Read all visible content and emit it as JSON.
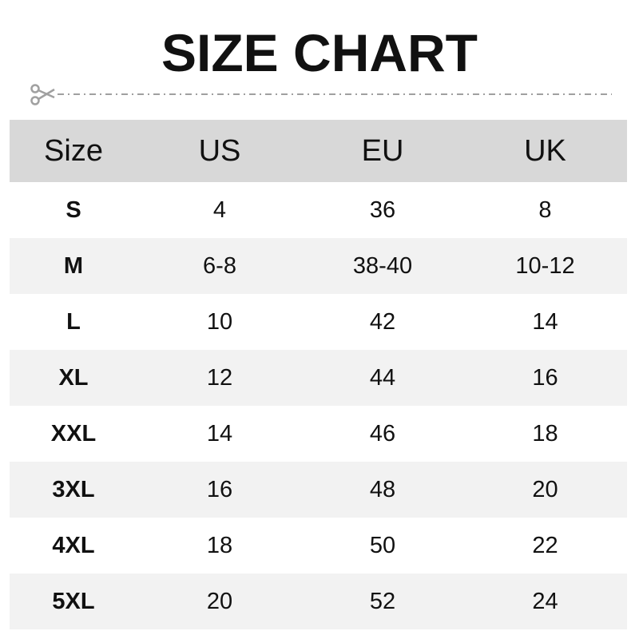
{
  "title": "SIZE CHART",
  "icons": {
    "cut": "scissors-icon"
  },
  "colors": {
    "header_bg": "#d8d8d8",
    "alt_row_bg": "#f2f2f2",
    "line": "#a0a0a0"
  },
  "table": {
    "headers": [
      "Size",
      "US",
      "EU",
      "UK"
    ],
    "rows": [
      [
        "S",
        "4",
        "36",
        "8"
      ],
      [
        "M",
        "6-8",
        "38-40",
        "10-12"
      ],
      [
        "L",
        "10",
        "42",
        "14"
      ],
      [
        "XL",
        "12",
        "44",
        "16"
      ],
      [
        "XXL",
        "14",
        "46",
        "18"
      ],
      [
        "3XL",
        "16",
        "48",
        "20"
      ],
      [
        "4XL",
        "18",
        "50",
        "22"
      ],
      [
        "5XL",
        "20",
        "52",
        "24"
      ]
    ]
  }
}
